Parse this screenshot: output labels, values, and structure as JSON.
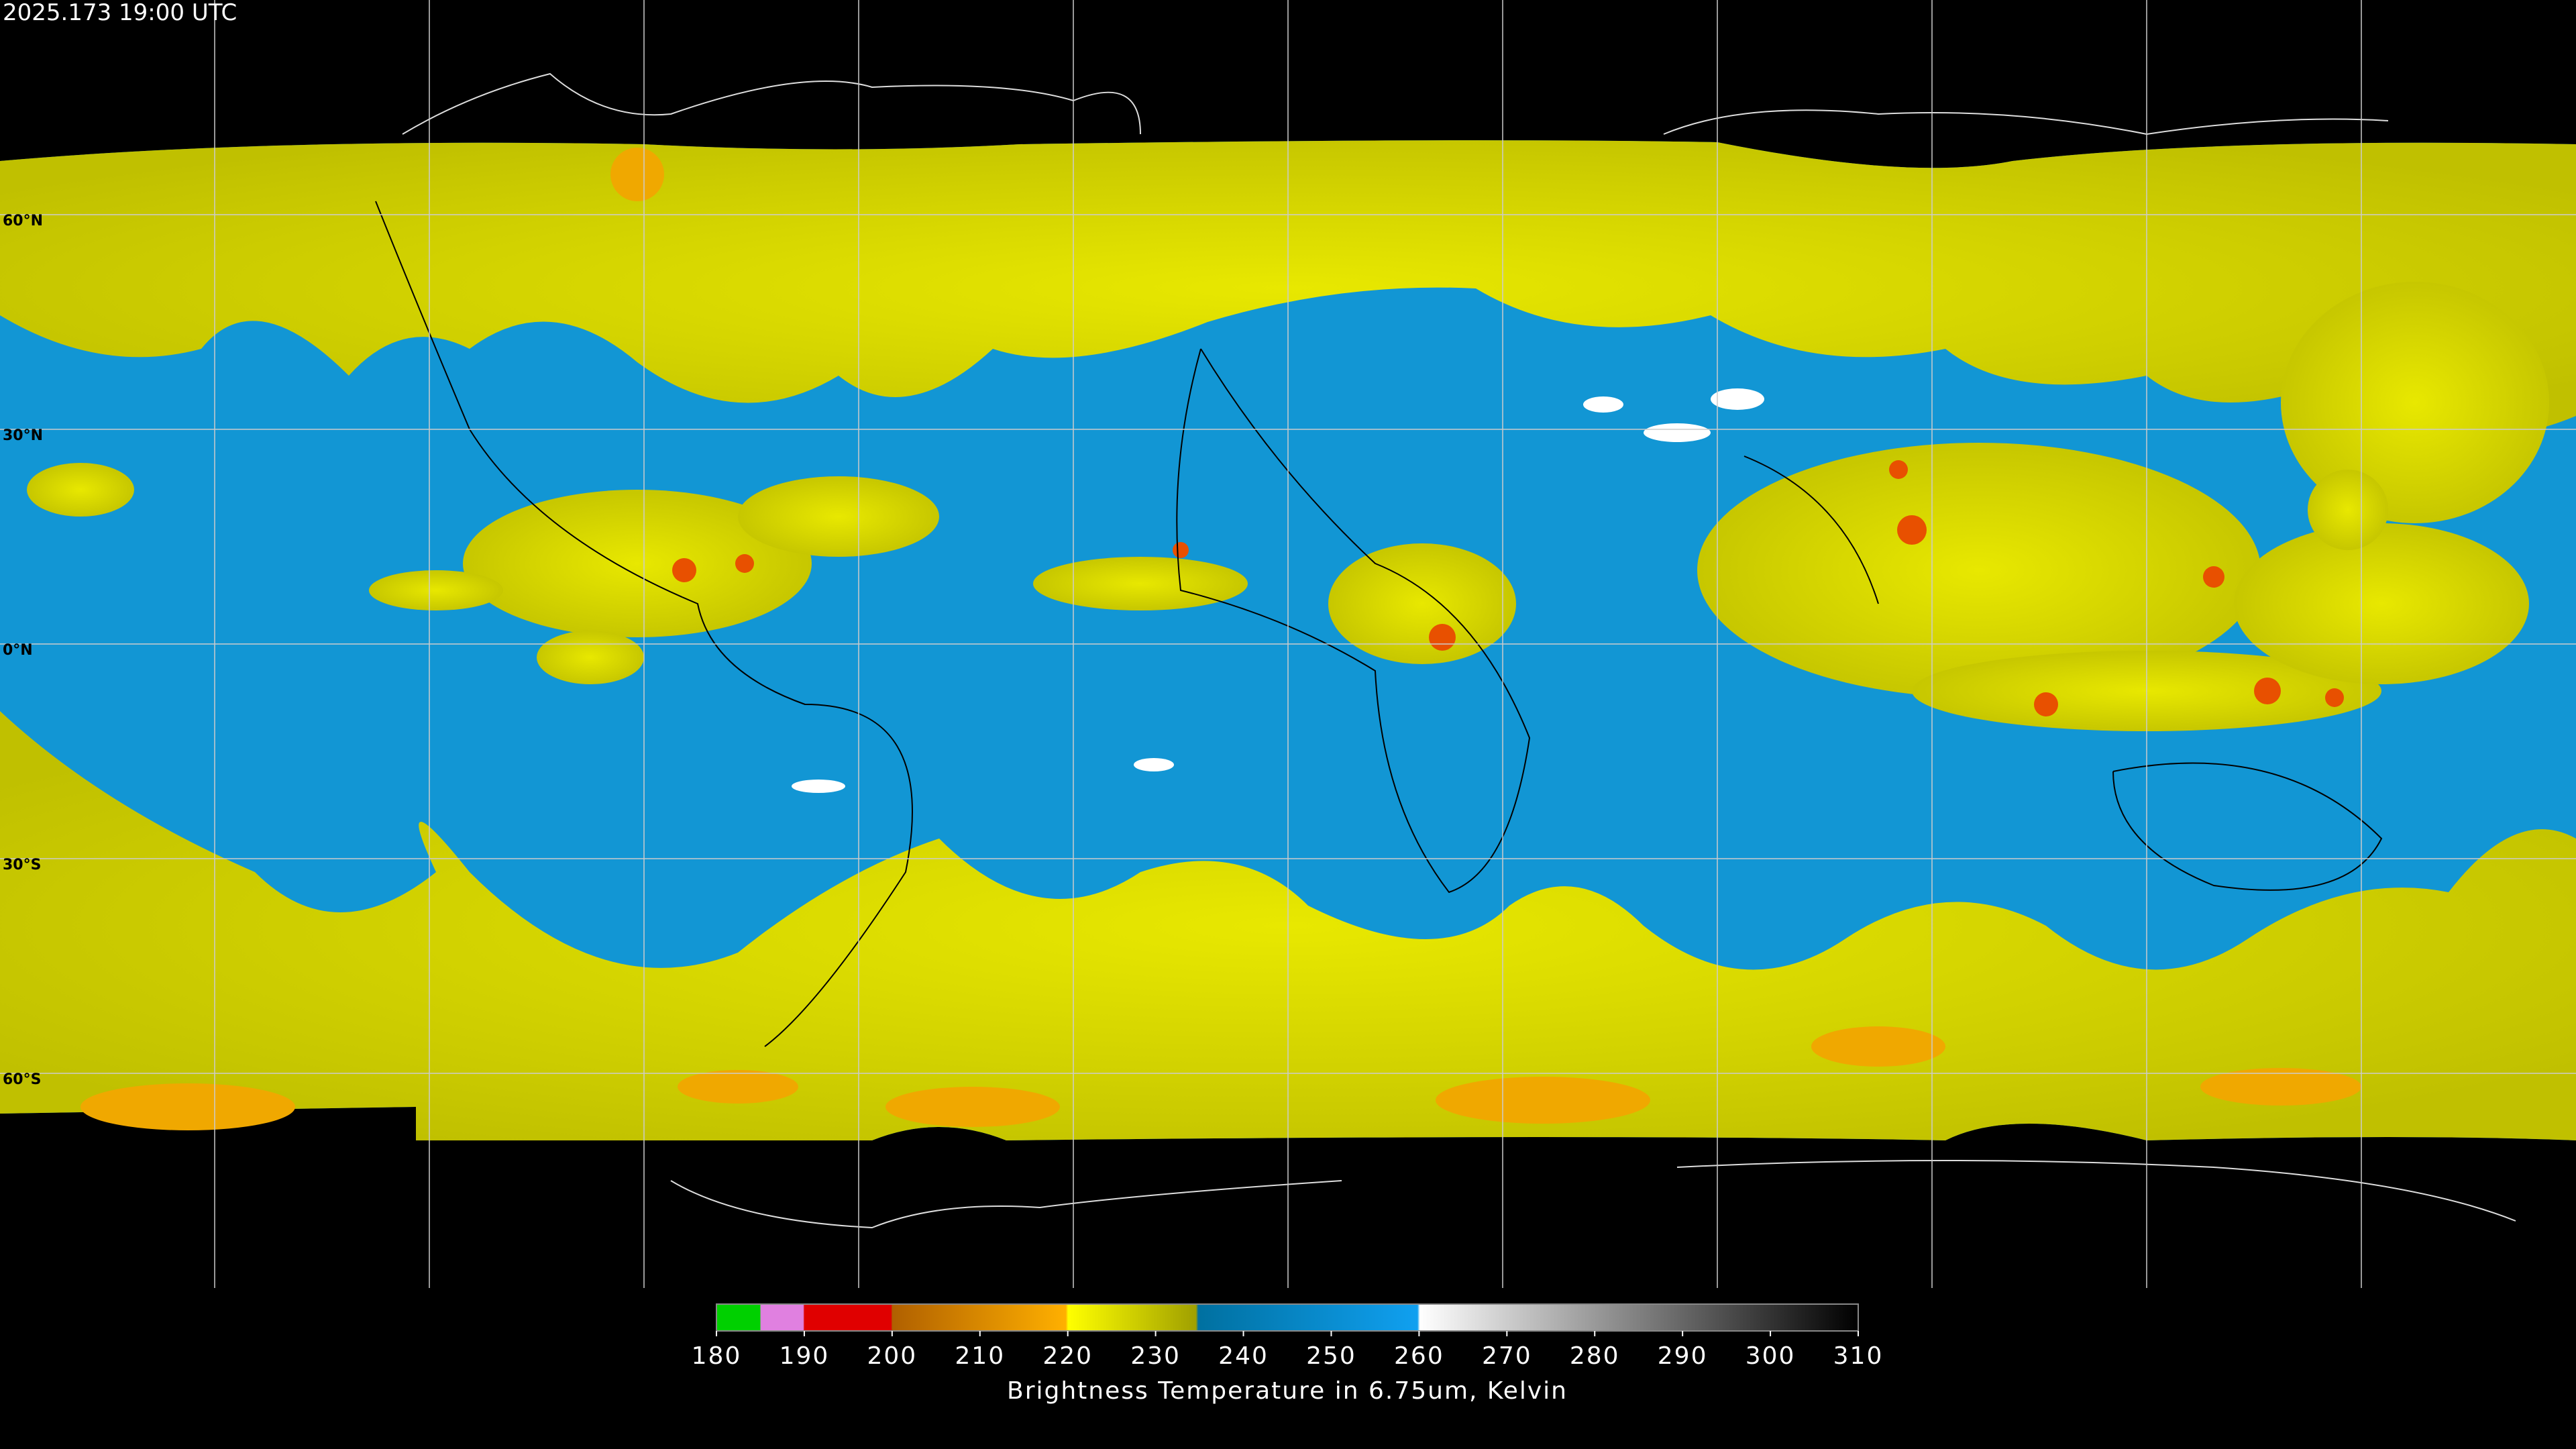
{
  "header": {
    "title": "2025.173 19:00 UTC"
  },
  "latitude_labels": [
    "60°N",
    "30°N",
    "0°N",
    "30°S",
    "60°S"
  ],
  "colorbar": {
    "ticks": [
      180,
      190,
      200,
      210,
      220,
      230,
      240,
      250,
      260,
      270,
      280,
      290,
      300,
      310
    ],
    "label": "Brightness Temperature in 6.75um, Kelvin"
  }
}
